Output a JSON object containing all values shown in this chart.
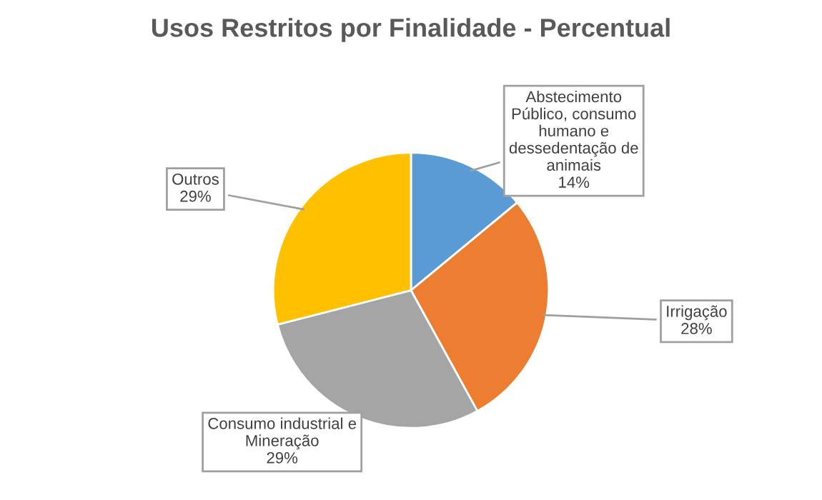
{
  "chart_data": {
    "type": "pie",
    "title": "Usos Restritos por Finalidade - Percentual",
    "categories": [
      "Abstecimento Público, consumo humano e dessedentação de animais",
      "Irrigação",
      "Consumo industrial e Mineração",
      "Outros"
    ],
    "values": [
      14,
      28,
      29,
      29
    ],
    "value_labels": [
      "14%",
      "28%",
      "29%",
      "29%"
    ],
    "colors": [
      "#5b9bd5",
      "#ed7d31",
      "#a5a5a5",
      "#ffc000"
    ],
    "legend": false
  }
}
